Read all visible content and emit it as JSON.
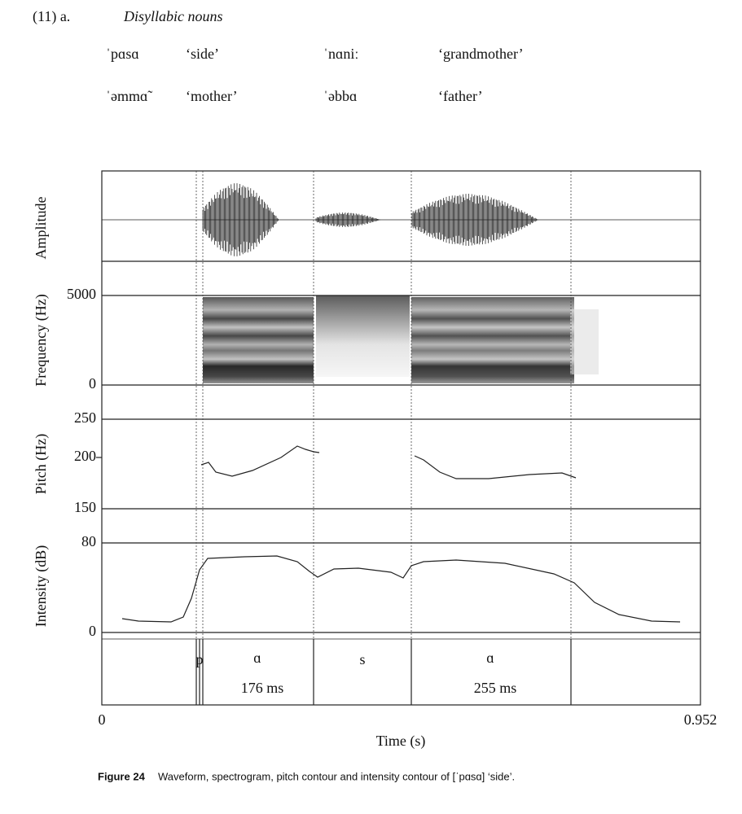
{
  "example": {
    "number": "(11)  a.",
    "heading": "Disyllabic nouns",
    "rows": [
      [
        {
          "form": "ˈpɑsɑ",
          "gloss": "‘side’"
        },
        {
          "form": "ˈnɑniː",
          "gloss": "‘grandmother’"
        }
      ],
      [
        {
          "form": "ˈəmmɑ̃",
          "gloss": "‘mother’"
        },
        {
          "form": "ˈəbbɑ",
          "gloss": "‘father’"
        }
      ]
    ]
  },
  "figure": {
    "panels": {
      "amplitude": "Amplitude",
      "frequency": "Frequency (Hz)",
      "pitch": "Pitch (Hz)",
      "intensity": "Intensity (dB)"
    },
    "ticks": {
      "freq_top": "5000",
      "freq_bottom": "0",
      "pitch_top": "250",
      "pitch_mid": "200",
      "pitch_bottom": "150",
      "int_top": "80",
      "int_bottom": "0",
      "time_start": "0",
      "time_end": "0.952"
    },
    "x_label": "Time (s)",
    "segments": [
      "p",
      "ɑ",
      "s",
      "ɑ"
    ],
    "durations": [
      "176 ms",
      "255 ms"
    ]
  },
  "caption": {
    "label": "Figure 24",
    "text": "Waveform, spectrogram, pitch contour and intensity contour of [ˈpɑsɑ] ‘side’."
  }
}
